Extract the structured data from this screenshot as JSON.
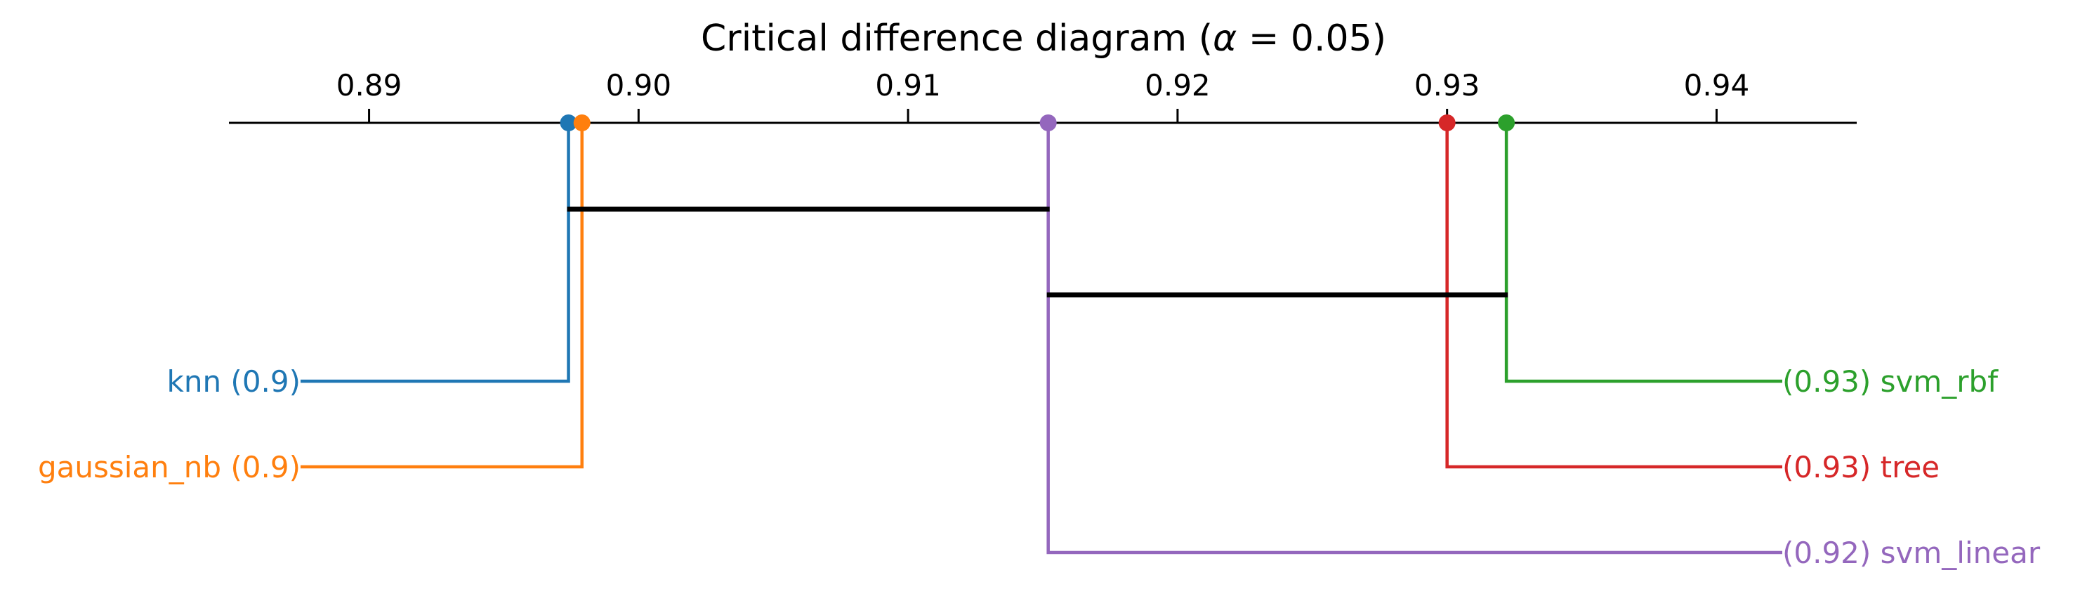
{
  "chart_data": {
    "type": "critical-difference-diagram",
    "title": "Critical difference diagram (",
    "title_symbol": "α",
    "title_suffix": " = 0.05)",
    "xlim": [
      0.8848,
      0.9452
    ],
    "ticks": [
      0.89,
      0.9,
      0.91,
      0.92,
      0.93,
      0.94
    ],
    "tick_labels": [
      "0.89",
      "0.90",
      "0.91",
      "0.92",
      "0.93",
      "0.94"
    ],
    "series": [
      {
        "name": "knn",
        "value": 0.8974,
        "label": "knn (0.9)",
        "side": "left",
        "color": "#1f77b4"
      },
      {
        "name": "gaussian_nb",
        "value": 0.8979,
        "label": "gaussian_nb (0.9)",
        "side": "left",
        "color": "#ff7f0e"
      },
      {
        "name": "svm_rbf",
        "value": 0.9322,
        "label": "(0.93) svm_rbf",
        "side": "right",
        "color": "#2ca02c"
      },
      {
        "name": "tree",
        "value": 0.93,
        "label": "(0.93) tree",
        "side": "right",
        "color": "#d62728"
      },
      {
        "name": "svm_linear",
        "value": 0.9152,
        "label": "(0.92) svm_linear",
        "side": "right",
        "color": "#9467bd"
      }
    ],
    "cliques": [
      {
        "start": 0.8974,
        "end": 0.9152
      },
      {
        "start": 0.9152,
        "end": 0.9322
      }
    ]
  }
}
